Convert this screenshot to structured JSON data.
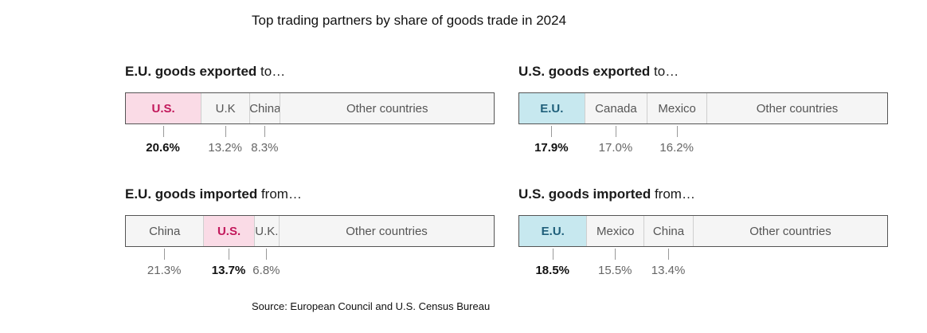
{
  "title": "Top trading partners by share of goods trade in 2024",
  "source": "Source: European Council and U.S. Census Bureau",
  "colors": {
    "eu_highlight_fill": "#fadbe6",
    "eu_highlight_text": "#c2185b",
    "us_highlight_fill": "#c7e8ef",
    "us_highlight_text": "#1f5f7a",
    "other_fill": "#f5f5f5"
  },
  "chart_data": [
    {
      "type": "bar",
      "title_bold": "E.U. goods exported",
      "title_rest": " to…",
      "highlight": "U.S.",
      "highlight_color": "pink",
      "categories": [
        "U.S.",
        "U.K",
        "China",
        "Other countries"
      ],
      "values": [
        20.6,
        13.2,
        8.3,
        57.9
      ],
      "labels": [
        "20.6%",
        "13.2%",
        "8.3%"
      ]
    },
    {
      "type": "bar",
      "title_bold": "U.S. goods exported",
      "title_rest": " to…",
      "highlight": "E.U.",
      "highlight_color": "blue",
      "categories": [
        "E.U.",
        "Canada",
        "Mexico",
        "Other countries"
      ],
      "values": [
        17.9,
        17.0,
        16.2,
        48.9
      ],
      "labels": [
        "17.9%",
        "17.0%",
        "16.2%"
      ]
    },
    {
      "type": "bar",
      "title_bold": "E.U. goods imported",
      "title_rest": " from…",
      "highlight": "U.S.",
      "highlight_color": "pink",
      "categories": [
        "China",
        "U.S.",
        "U.K.",
        "Other countries"
      ],
      "values": [
        21.3,
        13.7,
        6.8,
        58.2
      ],
      "labels": [
        "21.3%",
        "13.7%",
        "6.8%"
      ]
    },
    {
      "type": "bar",
      "title_bold": "U.S. goods imported",
      "title_rest": " from…",
      "highlight": "E.U.",
      "highlight_color": "blue",
      "categories": [
        "E.U.",
        "Mexico",
        "China",
        "Other countries"
      ],
      "values": [
        18.5,
        15.5,
        13.4,
        52.6
      ],
      "labels": [
        "18.5%",
        "15.5%",
        "13.4%"
      ]
    }
  ]
}
